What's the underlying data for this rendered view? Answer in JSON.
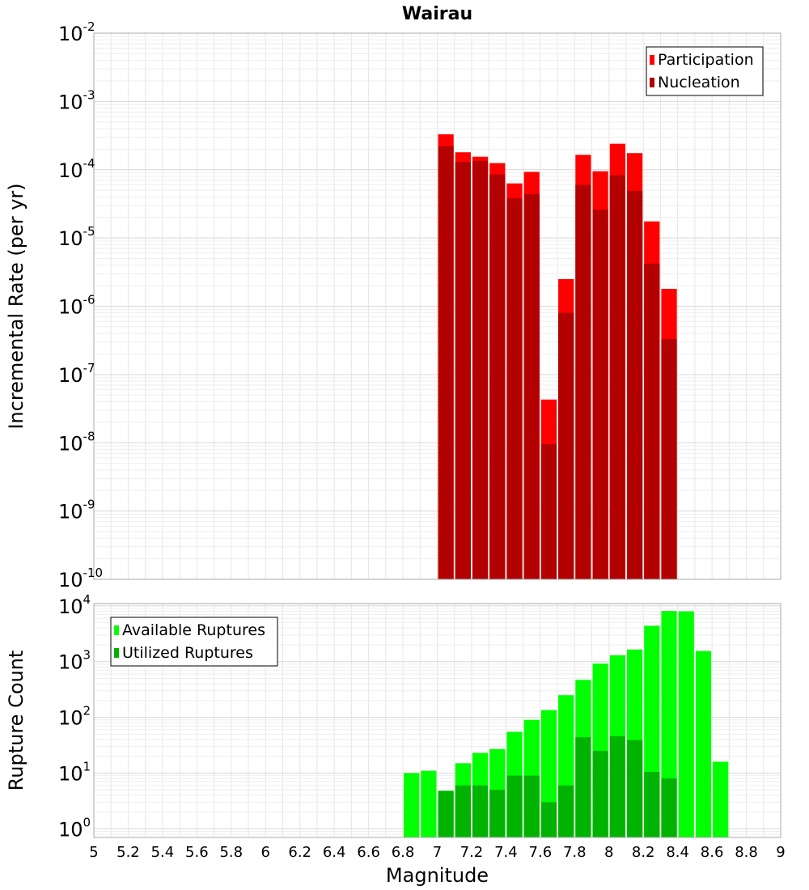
{
  "chart_data": [
    {
      "type": "bar",
      "title": "Wairau",
      "xlabel": "",
      "ylabel": "Incremental Rate (per yr)",
      "xlim": [
        5,
        9
      ],
      "yscale": "log",
      "ylim": [
        1e-10,
        0.01
      ],
      "ytick_exponents": [
        -10,
        -9,
        -8,
        -7,
        -6,
        -5,
        -4,
        -3,
        -2
      ],
      "ytick_base": "10",
      "grid": true,
      "legend_position": "top-right",
      "bar_width": 0.1,
      "x": [
        7.05,
        7.15,
        7.25,
        7.35,
        7.45,
        7.55,
        7.65,
        7.75,
        7.85,
        7.95,
        8.05,
        8.15,
        8.25,
        8.35
      ],
      "series": [
        {
          "name": "Participation",
          "color": "#ff0000",
          "values": [
            0.00033,
            0.00018,
            0.000155,
            0.000125,
            6.3e-05,
            9.3e-05,
            4.3e-08,
            2.5e-06,
            0.000165,
            9.5e-05,
            0.00024,
            0.000175,
            1.75e-05,
            1.8e-06
          ]
        },
        {
          "name": "Nucleation",
          "color": "#b30000",
          "values": [
            0.00022,
            0.00013,
            0.000135,
            8.5e-05,
            3.8e-05,
            4.4e-05,
            9.5e-09,
            8e-07,
            6e-05,
            2.6e-05,
            8.3e-05,
            4.9e-05,
            4.2e-06,
            3.3e-07
          ]
        }
      ]
    },
    {
      "type": "bar",
      "title": "",
      "xlabel": "Magnitude",
      "ylabel": "Rupture Count",
      "xlim": [
        5,
        9
      ],
      "xticks": [
        "5",
        "5.2",
        "5.4",
        "5.6",
        "5.8",
        "6",
        "6.2",
        "6.4",
        "6.6",
        "6.8",
        "7",
        "7.2",
        "7.4",
        "7.6",
        "7.8",
        "8",
        "8.2",
        "8.4",
        "8.6",
        "8.8",
        "9"
      ],
      "yscale": "log",
      "ylim": [
        0.7,
        11000
      ],
      "ytick_exponents": [
        0,
        1,
        2,
        3,
        4
      ],
      "ytick_base": "10",
      "grid": true,
      "legend_position": "top-left",
      "bar_width": 0.1,
      "x": [
        6.85,
        6.95,
        7.05,
        7.15,
        7.25,
        7.35,
        7.45,
        7.55,
        7.65,
        7.75,
        7.85,
        7.95,
        8.05,
        8.15,
        8.25,
        8.35,
        8.45,
        8.55,
        8.65
      ],
      "series": [
        {
          "name": "Available Ruptures",
          "color": "#00ff00",
          "values": [
            10,
            11,
            4.8,
            15,
            23,
            27,
            55,
            90,
            135,
            250,
            470,
            920,
            1300,
            1650,
            4400,
            8100,
            8000,
            1550,
            16
          ]
        },
        {
          "name": "Utilized Ruptures",
          "color": "#00b300",
          "values": [
            0,
            0,
            4.8,
            6,
            6,
            5,
            9,
            9,
            3,
            6,
            44,
            25,
            46,
            39,
            10.5,
            8,
            0,
            0,
            0
          ]
        }
      ]
    }
  ]
}
